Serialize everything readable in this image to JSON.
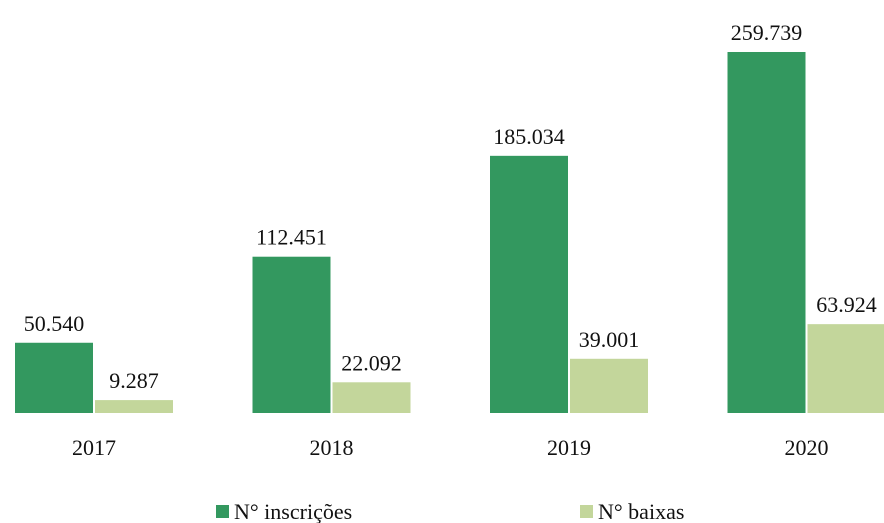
{
  "chart_data": {
    "type": "bar",
    "categories": [
      "2017",
      "2018",
      "2019",
      "2020"
    ],
    "series": [
      {
        "name": "N° inscrições",
        "color": "#33985f",
        "values": [
          50540,
          112451,
          185034,
          259739
        ],
        "value_labels": [
          "50.540",
          "112.451",
          "185.034",
          "259.739"
        ]
      },
      {
        "name": "N° baixas",
        "color": "#c3d69b",
        "values": [
          9287,
          22092,
          39001,
          63924
        ],
        "value_labels": [
          "9.287",
          "22.092",
          "39.001",
          "63.924"
        ]
      }
    ]
  }
}
